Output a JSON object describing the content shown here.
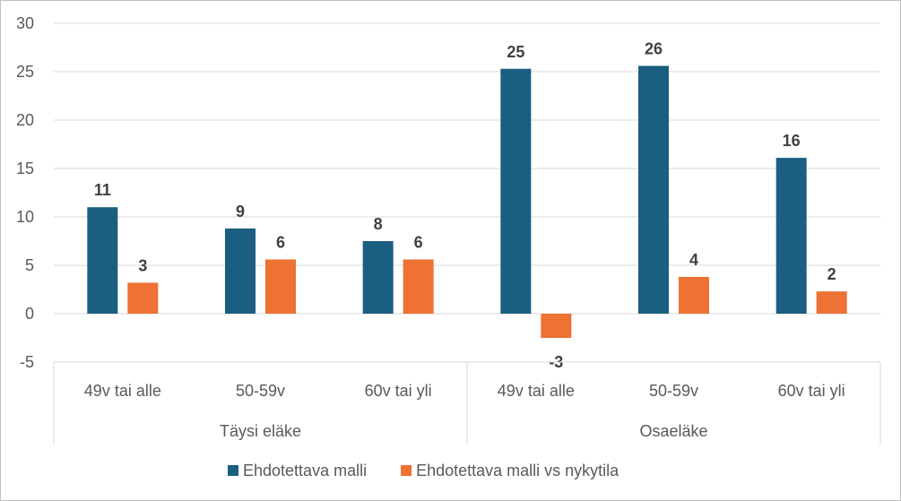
{
  "chart_data": {
    "type": "bar",
    "title": "",
    "xlabel": "",
    "ylabel": "",
    "ylim": [
      -5,
      30
    ],
    "yticks": [
      -5,
      0,
      5,
      10,
      15,
      20,
      25,
      30
    ],
    "grid": true,
    "legend_position": "bottom",
    "groups": [
      {
        "label": "Täysi eläke",
        "categories": [
          "49v tai alle",
          "50-59v",
          "60v tai yli"
        ]
      },
      {
        "label": "Osaeläke",
        "categories": [
          "49v tai alle",
          "50-59v",
          "60v tai yli"
        ]
      }
    ],
    "series": [
      {
        "name": "Ehdotettava malli",
        "color": "#1a5e80",
        "values": [
          11,
          8.8,
          7.5,
          25.3,
          25.6,
          16.1
        ],
        "labels": [
          "11",
          "9",
          "8",
          "25",
          "26",
          "16"
        ]
      },
      {
        "name": "Ehdotettava malli vs nykytila",
        "color": "#ed7233",
        "values": [
          3.2,
          5.6,
          5.6,
          -2.5,
          3.8,
          2.3
        ],
        "labels": [
          "3",
          "6",
          "6",
          "-3",
          "4",
          "2"
        ]
      }
    ]
  }
}
